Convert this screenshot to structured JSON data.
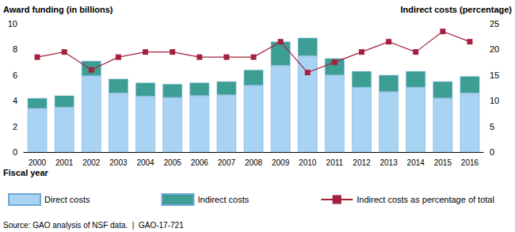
{
  "chart_data": {
    "type": "bar",
    "ylabel": "Award funding (in billions)",
    "y2label": "Indirect costs (percentage)",
    "xlabel": "Fiscal year",
    "note": "Source: GAO analysis of NSF data.  |  GAO-17-721",
    "categories": [
      "2000",
      "2001",
      "2002",
      "2003",
      "2004",
      "2005",
      "2006",
      "2007",
      "2008",
      "2009",
      "2010",
      "2011",
      "2012",
      "2013",
      "2014",
      "2015",
      "2016"
    ],
    "stacked": true,
    "grid": false,
    "legend": "bottom-left",
    "ylim": [
      0,
      10
    ],
    "yticks": [
      0,
      2,
      4,
      6,
      8,
      10
    ],
    "y2lim": [
      0,
      25
    ],
    "y2ticks": [
      0,
      5,
      10,
      15,
      20,
      25
    ],
    "series": [
      {
        "name": "Direct costs",
        "type": "bar",
        "color": "#a9d3f3",
        "values": [
          3.4,
          3.5,
          5.95,
          4.6,
          4.35,
          4.25,
          4.4,
          4.45,
          5.2,
          6.75,
          7.5,
          6.0,
          5.05,
          4.7,
          5.05,
          4.2,
          4.6
        ]
      },
      {
        "name": "Indirect costs",
        "type": "bar",
        "color": "#3d9e94",
        "values": [
          0.8,
          0.9,
          1.15,
          1.1,
          1.05,
          1.05,
          1.0,
          1.05,
          1.2,
          1.85,
          1.4,
          1.3,
          1.25,
          1.3,
          1.25,
          1.3,
          1.3
        ]
      },
      {
        "name": "Indirect costs as percentage of total",
        "type": "line",
        "axis": "y2",
        "color": "#a3213f",
        "marker": "square",
        "values": [
          18.5,
          19.5,
          16,
          18.5,
          19.5,
          19.5,
          18.5,
          18.5,
          18.5,
          21.5,
          15.5,
          17.5,
          19.5,
          21.5,
          19.5,
          23.5,
          21.5
        ]
      }
    ]
  }
}
